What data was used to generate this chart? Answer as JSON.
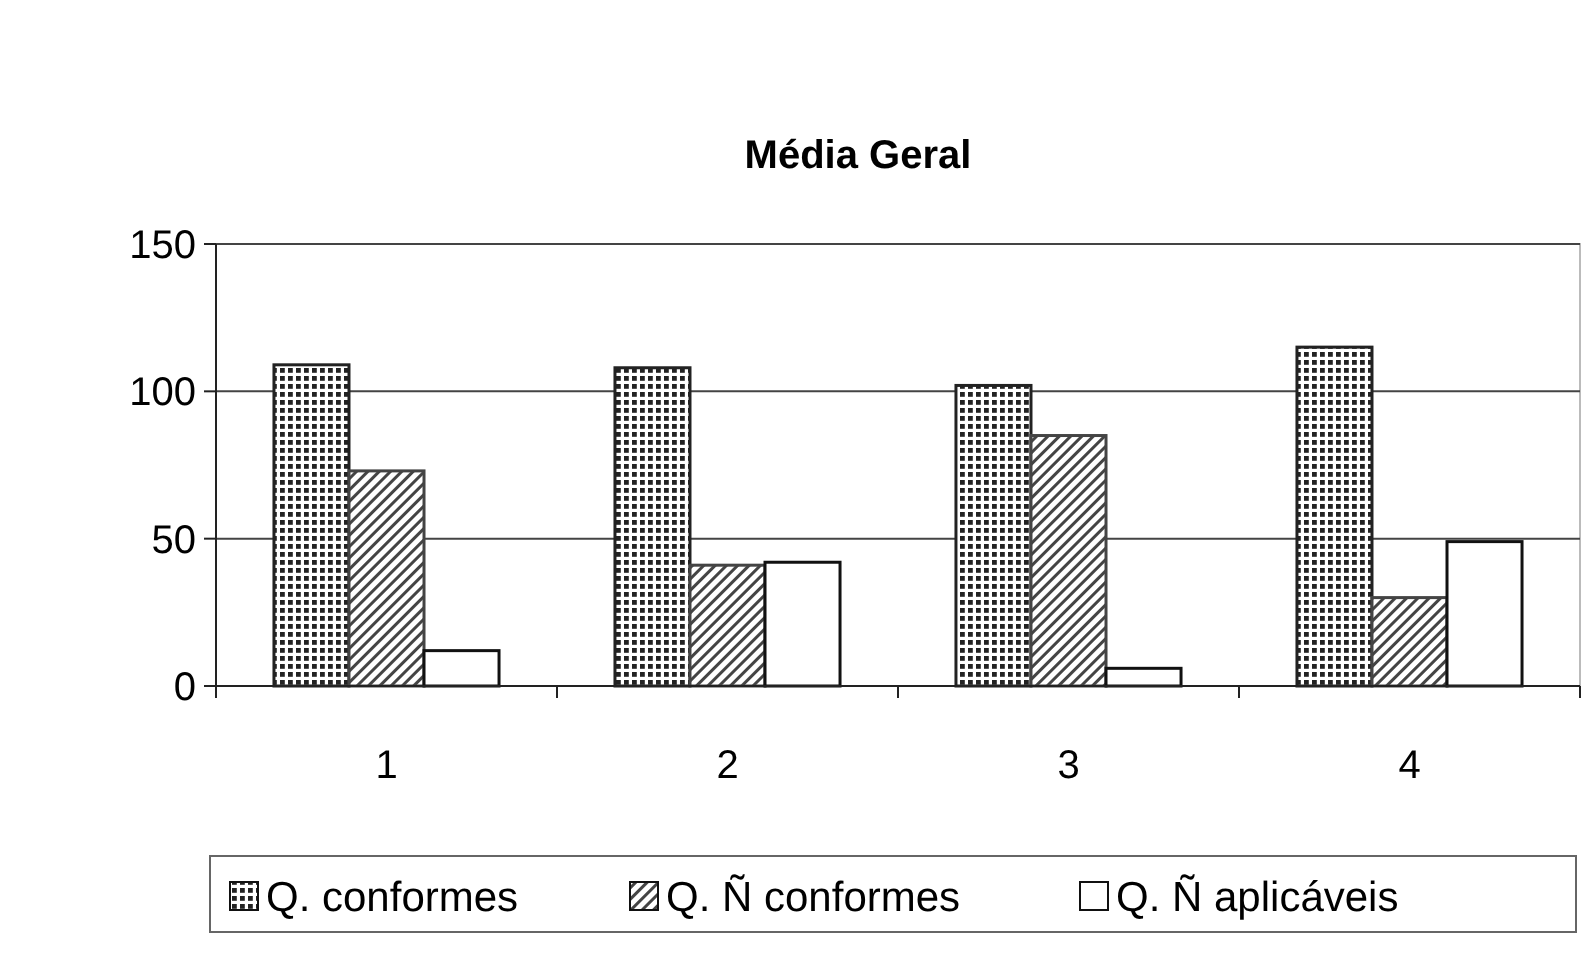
{
  "chart_data": {
    "type": "bar",
    "title": "Média Geral",
    "categories": [
      "1",
      "2",
      "3",
      "4"
    ],
    "series": [
      {
        "name": "Q. conformes",
        "color": "#222222",
        "values": [
          109,
          108,
          102,
          115
        ]
      },
      {
        "name": "Q. Ñ conformes",
        "color": "#444444",
        "values": [
          73,
          41,
          85,
          30
        ]
      },
      {
        "name": "Q. Ñ aplicáveis",
        "color": "#ffffff",
        "values": [
          12,
          42,
          6,
          49
        ]
      }
    ],
    "ylim": [
      0,
      150
    ],
    "yticks": [
      0,
      50,
      100,
      150
    ],
    "grid": "y",
    "legend": "bottom"
  }
}
